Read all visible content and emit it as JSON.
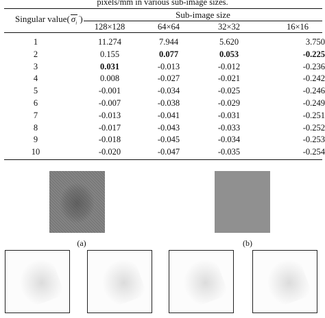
{
  "table": {
    "caption": "pixels/mm in various sub-image sizes.",
    "row_header": "Singular value(",
    "row_header_symbol": "σ",
    "row_header_close": ")",
    "group_header": "Sub-image size",
    "columns": [
      "128×128",
      "64×64",
      "32×32",
      "16×16"
    ],
    "rows": [
      {
        "idx": "1",
        "v": [
          "11.274",
          "7.944",
          "5.620",
          "3.750"
        ]
      },
      {
        "idx": "2",
        "v": [
          "0.155",
          "0.077",
          "0.053",
          "-0.225"
        ]
      },
      {
        "idx": "3",
        "v": [
          "0.031",
          "-0.013",
          "-0.012",
          "-0.236"
        ]
      },
      {
        "idx": "4",
        "v": [
          "0.008",
          "-0.027",
          "-0.021",
          "-0.242"
        ]
      },
      {
        "idx": "5",
        "v": [
          "-0.001",
          "-0.034",
          "-0.025",
          "-0.246"
        ]
      },
      {
        "idx": "6",
        "v": [
          "-0.007",
          "-0.038",
          "-0.029",
          "-0.249"
        ]
      },
      {
        "idx": "7",
        "v": [
          "-0.013",
          "-0.041",
          "-0.031",
          "-0.251"
        ]
      },
      {
        "idx": "8",
        "v": [
          "-0.017",
          "-0.043",
          "-0.033",
          "-0.252"
        ]
      },
      {
        "idx": "9",
        "v": [
          "-0.018",
          "-0.045",
          "-0.034",
          "-0.253"
        ]
      },
      {
        "idx": "10",
        "v": [
          "-0.020",
          "-0.047",
          "-0.035",
          "-0.254"
        ]
      }
    ]
  },
  "figure": {
    "label_a": "(a)",
    "label_b": "(b)"
  }
}
